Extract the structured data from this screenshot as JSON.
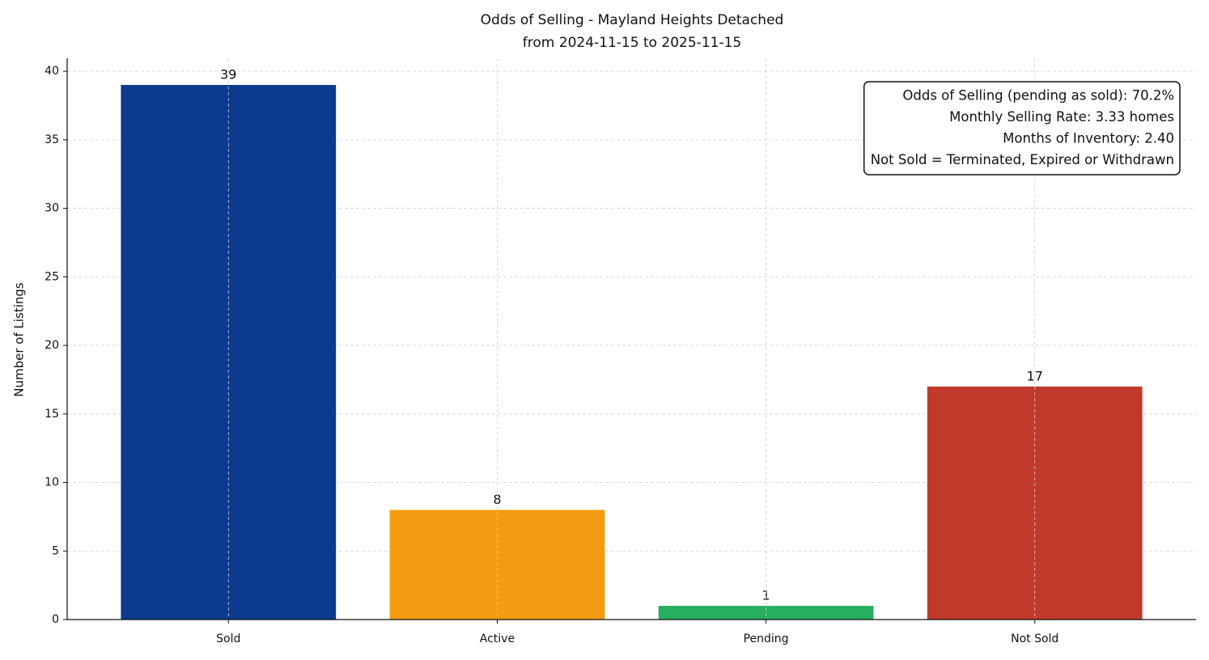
{
  "chart_data": {
    "type": "bar",
    "title": "Odds of Selling - Mayland Heights Detached",
    "subtitle": "from 2024-11-15 to 2025-11-15",
    "y_label": "Number of Listings",
    "categories": [
      "Sold",
      "Active",
      "Pending",
      "Not Sold"
    ],
    "values": [
      39,
      8,
      1,
      17
    ],
    "colors": [
      "#0b3a8f",
      "#f39c12",
      "#27ae60",
      "#c0392b"
    ],
    "ylim": [
      0,
      40.95
    ],
    "yticks": [
      0,
      5,
      10,
      15,
      20,
      25,
      30,
      35,
      40
    ],
    "grid": true,
    "annotation": [
      "Odds of Selling (pending as sold): 70.2%",
      "Monthly Selling Rate: 3.33 homes",
      "Months of Inventory: 2.40",
      "Not Sold = Terminated, Expired or Withdrawn"
    ],
    "annotation_corner": "upper right"
  }
}
